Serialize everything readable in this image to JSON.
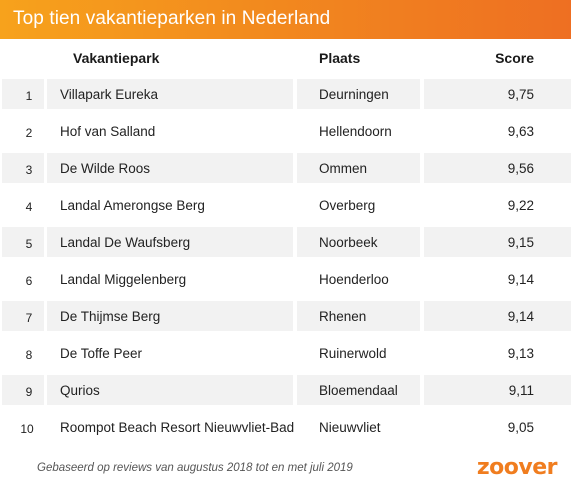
{
  "title": "Top tien vakantieparken in Nederland",
  "columns": {
    "park": "Vakantiepark",
    "place": "Plaats",
    "score": "Score"
  },
  "rows": [
    {
      "rank": "1",
      "park": "Villapark Eureka",
      "place": "Deurningen",
      "score": "9,75"
    },
    {
      "rank": "2",
      "park": "Hof van Salland",
      "place": "Hellendoorn",
      "score": "9,63"
    },
    {
      "rank": "3",
      "park": "De Wilde Roos",
      "place": "Ommen",
      "score": "9,56"
    },
    {
      "rank": "4",
      "park": "Landal Amerongse Berg",
      "place": "Overberg",
      "score": "9,22"
    },
    {
      "rank": "5",
      "park": "Landal De Waufsberg",
      "place": "Noorbeek",
      "score": "9,15"
    },
    {
      "rank": "6",
      "park": "Landal Miggelenberg",
      "place": "Hoenderloo",
      "score": "9,14"
    },
    {
      "rank": "7",
      "park": "De Thijmse Berg",
      "place": "Rhenen",
      "score": "9,14"
    },
    {
      "rank": "8",
      "park": "De Toffe Peer",
      "place": "Ruinerwold",
      "score": "9,13"
    },
    {
      "rank": "9",
      "park": "Qurios",
      "place": "Bloemendaal",
      "score": "9,11"
    },
    {
      "rank": "10",
      "park": "Roompot Beach Resort Nieuwvliet-Bad",
      "place": "Nieuwvliet",
      "score": "9,05"
    }
  ],
  "footer": {
    "note": "Gebaseerd op reviews van augustus 2018 tot en met juli 2019",
    "logo": "zoover"
  },
  "colors": {
    "title_bar_start": "#f7a21c",
    "title_bar_end": "#ee6f22",
    "row_shade": "#f2f2f2",
    "logo": "#f07d1f"
  }
}
